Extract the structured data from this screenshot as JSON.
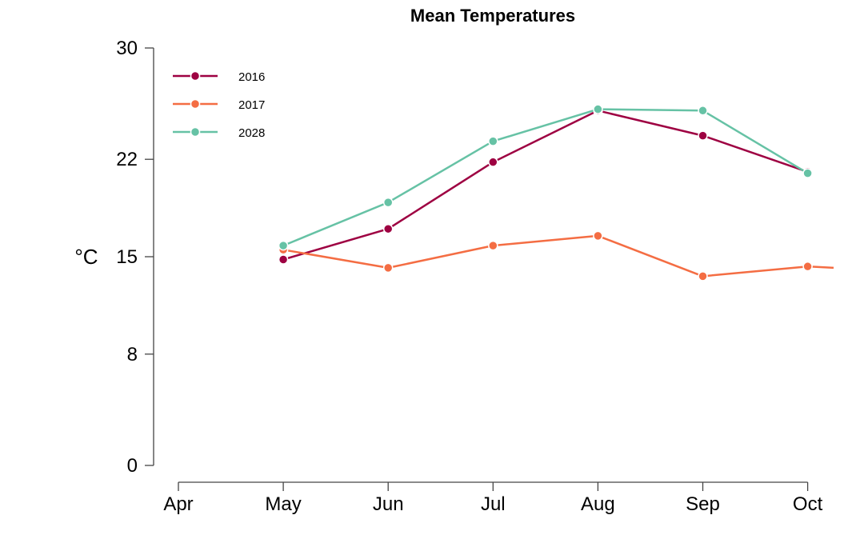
{
  "chart_data": {
    "type": "line",
    "title": "Mean Temperatures",
    "ylabel": "°C",
    "xlabel": "",
    "categories": [
      "Apr",
      "May",
      "Jun",
      "Jul",
      "Aug",
      "Sep",
      "Oct"
    ],
    "yticks": [
      0,
      8,
      15,
      22,
      30
    ],
    "ylim": [
      0,
      30
    ],
    "grid": false,
    "legend_position": "top-left",
    "series": [
      {
        "name": "2016",
        "color": "#9E0142",
        "values": [
          null,
          14.8,
          17.0,
          21.8,
          25.5,
          23.7,
          21.1
        ],
        "tail": null
      },
      {
        "name": "2017",
        "color": "#F46D43",
        "values": [
          null,
          15.5,
          14.2,
          15.8,
          16.5,
          13.6,
          14.3
        ],
        "tail": 14.2
      },
      {
        "name": "2028",
        "color": "#66C2A5",
        "values": [
          null,
          15.8,
          18.9,
          23.3,
          25.6,
          25.5,
          21.0
        ],
        "tail": null
      }
    ]
  }
}
